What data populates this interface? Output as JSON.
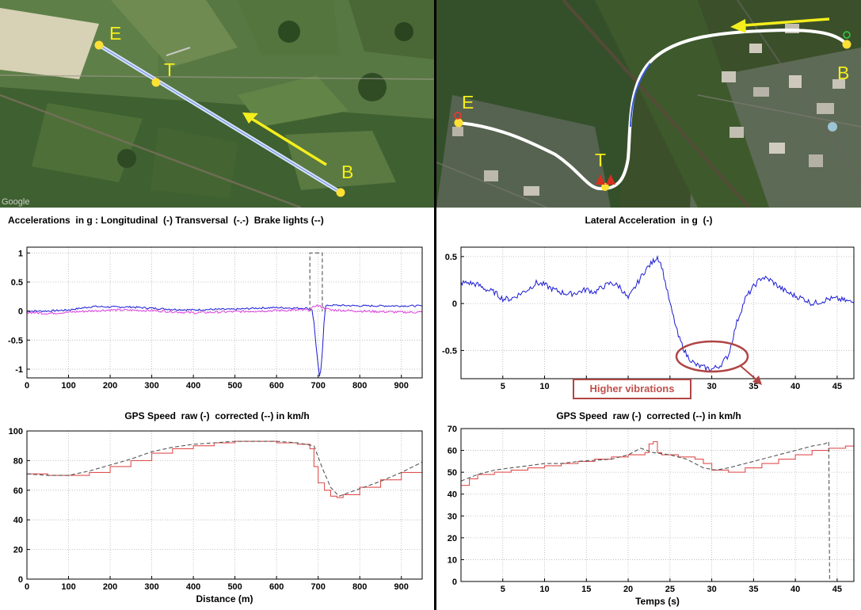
{
  "left_panel": {
    "map": {
      "markers": [
        "E",
        "T",
        "B"
      ],
      "watermark": "Google",
      "arrow_color": "#f4ee1c",
      "route_color": "#d8e6ff"
    },
    "chart_titles": {
      "accel": "Accelerations  in g : Longitudinal  (-) Transversal  (-.-)  Brake lights (--)",
      "speed": "GPS Speed  raw (-)  corrected (--) in km/h"
    }
  },
  "right_panel": {
    "map": {
      "markers": [
        "E",
        "T",
        "B"
      ],
      "arrow_color": "#f4ee1c",
      "route_color": "#ffffff"
    },
    "chart_titles": {
      "lateral": "Lateral Acceleration  in g  (-)",
      "speed": "GPS Speed  raw (-)  corrected (--) in km/h"
    },
    "annotation": "Higher vibrations"
  },
  "colors": {
    "longitudinal": "#1a1ad6",
    "transversal": "#e040e0",
    "raw_speed": "#e05050",
    "corrected_speed": "#555555",
    "annotation": "#b04545"
  },
  "chart_data": [
    {
      "id": "accel",
      "type": "line",
      "title": "Accelerations  in g : Longitudinal  (-) Transversal  (-.-)  Brake lights (--)",
      "xlabel": "",
      "ylabel": "",
      "xlim": [
        0,
        950
      ],
      "ylim": [
        -1.15,
        1.1
      ],
      "xticks": [
        0,
        100,
        200,
        300,
        400,
        500,
        600,
        700,
        800,
        900
      ],
      "yticks": [
        1,
        0.5,
        0,
        -0.5,
        -1
      ],
      "ytick_labels": [
        "1",
        "0.5",
        "0",
        "-0.5",
        "-1"
      ],
      "grid": true,
      "series": [
        {
          "color_key": "longitudinal",
          "style": "solid",
          "noise": 0.015,
          "x": [
            0,
            50,
            100,
            130,
            160,
            200,
            250,
            300,
            350,
            400,
            450,
            500,
            550,
            600,
            650,
            670,
            685,
            690,
            695,
            700,
            703,
            706,
            710,
            714,
            718,
            725,
            740,
            800,
            900,
            950
          ],
          "y": [
            0,
            0,
            0.02,
            0.05,
            0.08,
            0.07,
            0.07,
            0.05,
            0.03,
            0.02,
            0.03,
            0.03,
            0.05,
            0.06,
            0.05,
            0.05,
            0.03,
            -0.2,
            -0.6,
            -0.95,
            -1.12,
            -1.05,
            -0.7,
            -0.2,
            0.08,
            0.1,
            0.1,
            0.09,
            0.09,
            0.09
          ]
        },
        {
          "color_key": "transversal",
          "style": "solid",
          "noise": 0.02,
          "x": [
            0,
            50,
            100,
            200,
            300,
            400,
            500,
            600,
            680,
            695,
            705,
            715,
            730,
            800,
            900,
            950
          ],
          "y": [
            -0.02,
            -0.04,
            -0.02,
            0.02,
            0.01,
            -0.03,
            -0.01,
            0.01,
            0.02,
            0.1,
            0.08,
            0.05,
            0.02,
            0,
            -0.02,
            -0.02
          ]
        },
        {
          "color_key": "corrected_speed",
          "style": "dashed",
          "noise": 0,
          "x": [
            680,
            680,
            710,
            710
          ],
          "y": [
            0,
            1,
            1,
            0
          ]
        }
      ]
    },
    {
      "id": "speed_left",
      "type": "line",
      "title": "GPS Speed  raw (-)  corrected (--) in km/h",
      "xlabel": "Distance (m)",
      "ylabel": "",
      "xlim": [
        0,
        950
      ],
      "ylim": [
        0,
        100
      ],
      "xticks": [
        0,
        100,
        200,
        300,
        400,
        500,
        600,
        700,
        800,
        900
      ],
      "yticks": [
        0,
        20,
        40,
        60,
        80,
        100
      ],
      "grid": true,
      "series": [
        {
          "name": "raw",
          "color_key": "raw_speed",
          "style": "step",
          "x": [
            0,
            50,
            100,
            150,
            200,
            250,
            300,
            350,
            400,
            450,
            500,
            550,
            600,
            650,
            680,
            690,
            700,
            715,
            730,
            745,
            760,
            800,
            850,
            900,
            950
          ],
          "y": [
            71,
            70,
            70,
            72,
            76,
            80,
            85,
            88,
            90,
            92,
            93,
            93,
            92,
            91,
            88,
            76,
            65,
            60,
            56,
            55,
            57,
            62,
            67,
            72,
            77
          ]
        },
        {
          "name": "corrected",
          "color_key": "corrected_speed",
          "style": "dashed",
          "x": [
            0,
            50,
            100,
            150,
            200,
            250,
            300,
            350,
            400,
            450,
            500,
            550,
            600,
            650,
            690,
            710,
            730,
            750,
            800,
            850,
            900,
            950
          ],
          "y": [
            71,
            70,
            70,
            73,
            77,
            81,
            86,
            89,
            91,
            92,
            93,
            93,
            93,
            92,
            90,
            75,
            62,
            56,
            61,
            66,
            72,
            79
          ]
        }
      ]
    },
    {
      "id": "lateral",
      "type": "line",
      "title": "Lateral Acceleration  in g  (-)",
      "xlabel": "",
      "ylabel": "",
      "xlim": [
        0,
        47
      ],
      "ylim": [
        -0.8,
        0.6
      ],
      "xticks": [
        5,
        10,
        15,
        20,
        25,
        30,
        35,
        40,
        45
      ],
      "yticks": [
        0.5,
        0,
        -0.5
      ],
      "ytick_labels": [
        "0.5",
        "0",
        "-0.5"
      ],
      "grid": true,
      "series": [
        {
          "color_key": "longitudinal",
          "style": "solid",
          "noise": 0.03,
          "x": [
            0,
            1,
            2,
            3,
            4,
            5,
            6,
            7,
            8,
            9,
            10,
            11,
            12,
            13,
            14,
            15,
            16,
            17,
            18,
            19,
            20,
            21,
            22,
            23,
            23.5,
            24,
            25,
            26,
            27,
            28,
            29,
            30,
            31,
            32,
            33,
            34,
            35,
            36,
            37,
            38,
            39,
            40,
            41,
            42,
            43,
            44,
            45,
            46,
            47
          ],
          "y": [
            0.22,
            0.22,
            0.2,
            0.15,
            0.12,
            0.05,
            0.05,
            0.1,
            0.15,
            0.22,
            0.2,
            0.15,
            0.12,
            0.1,
            0.12,
            0.15,
            0.12,
            0.18,
            0.22,
            0.18,
            0.05,
            0.2,
            0.35,
            0.45,
            0.5,
            0.4,
            0.0,
            -0.35,
            -0.55,
            -0.65,
            -0.68,
            -0.7,
            -0.66,
            -0.55,
            -0.2,
            0.05,
            0.18,
            0.28,
            0.25,
            0.18,
            0.12,
            0.08,
            0.05,
            0.0,
            0.02,
            0.05,
            0.05,
            0.03,
            0.01
          ]
        }
      ]
    },
    {
      "id": "speed_right",
      "type": "line",
      "title": "GPS Speed  raw (-)  corrected (--) in km/h",
      "xlabel": "Temps (s)",
      "ylabel": "",
      "xlim": [
        0,
        47
      ],
      "ylim": [
        0,
        70
      ],
      "xticks": [
        5,
        10,
        15,
        20,
        25,
        30,
        35,
        40,
        45
      ],
      "yticks": [
        0,
        10,
        20,
        30,
        40,
        50,
        60,
        70
      ],
      "grid": true,
      "series": [
        {
          "name": "raw",
          "color_key": "raw_speed",
          "style": "step",
          "x": [
            0,
            1,
            2,
            4,
            6,
            8,
            10,
            12,
            14,
            16,
            18,
            20,
            22,
            22.5,
            23,
            23.5,
            24,
            26,
            28,
            29,
            30,
            32,
            34,
            36,
            38,
            40,
            42,
            44,
            46,
            47
          ],
          "y": [
            44,
            47,
            49,
            50,
            51,
            52,
            53,
            54,
            55,
            56,
            57,
            58,
            59,
            63,
            64,
            59,
            58,
            57,
            56,
            54,
            51,
            50,
            52,
            54,
            56,
            58,
            60,
            61,
            62,
            63
          ]
        },
        {
          "name": "corrected",
          "color_key": "corrected_speed",
          "style": "dashed",
          "x": [
            0,
            2,
            4,
            6,
            8,
            10,
            12,
            14,
            16,
            18,
            20,
            21.5,
            23,
            25,
            27,
            29,
            30.5,
            32,
            34,
            36,
            38,
            40,
            42,
            43.5,
            44,
            44.05,
            44.1
          ],
          "y": [
            46,
            49,
            51,
            52,
            53,
            54,
            54,
            55,
            55.5,
            56,
            58,
            61,
            59,
            58,
            56,
            52,
            51,
            52,
            54,
            56,
            58,
            60,
            62,
            63,
            64,
            30,
            0
          ]
        }
      ]
    }
  ]
}
